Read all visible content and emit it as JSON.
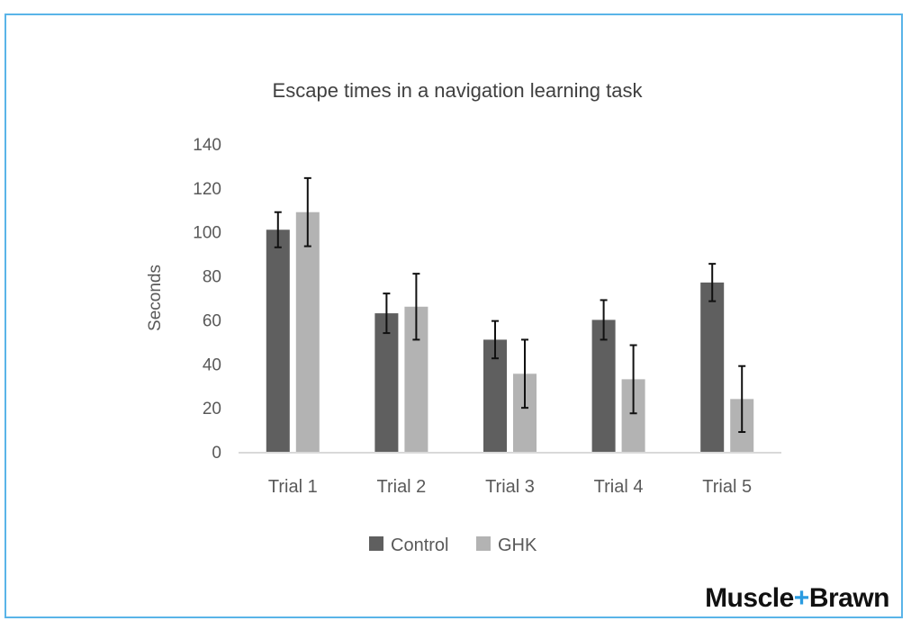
{
  "chart_data": {
    "type": "bar",
    "title": "Escape times in a navigation learning task",
    "xlabel": "",
    "ylabel": "Seconds",
    "ylim": [
      0,
      140
    ],
    "yticks": [
      0,
      20,
      40,
      60,
      80,
      100,
      120,
      140
    ],
    "categories": [
      "Trial 1",
      "Trial 2",
      "Trial 3",
      "Trial 4",
      "Trial 5"
    ],
    "series": [
      {
        "name": "Control",
        "color": "#5f5f5f",
        "values": [
          101,
          63,
          51,
          60,
          77
        ],
        "errors": [
          8,
          9,
          8.5,
          9,
          8.5
        ]
      },
      {
        "name": "GHK",
        "color": "#b3b3b3",
        "values": [
          109,
          66,
          35.5,
          33,
          24
        ],
        "errors": [
          15.5,
          15,
          15.5,
          15.5,
          15
        ]
      }
    ],
    "legend": "bottom",
    "grid": false
  },
  "brand": {
    "left": "Muscle",
    "plus": "+",
    "right": "Brawn"
  }
}
